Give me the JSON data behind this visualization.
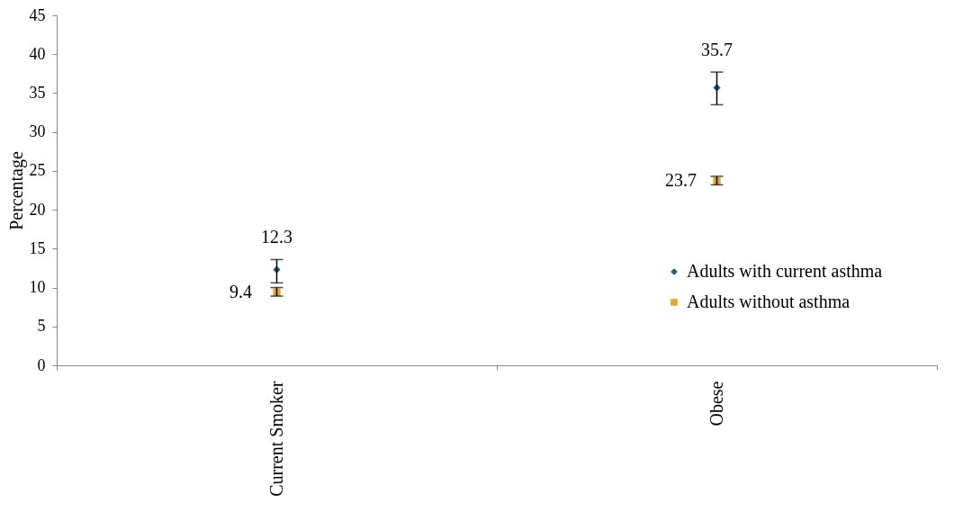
{
  "chart_data": {
    "type": "scatter",
    "ylabel": "Percentage",
    "categories": [
      "Current Smoker",
      "Obese"
    ],
    "series": [
      {
        "name": "Adults with current asthma",
        "color": "#1f5c87",
        "marker": "diamond",
        "values": [
          12.3,
          35.7
        ],
        "errors": [
          [
            10.6,
            13.6
          ],
          [
            33.5,
            37.7
          ]
        ]
      },
      {
        "name": "Adults without asthma",
        "color": "#e8a72c",
        "marker": "square",
        "values": [
          9.4,
          23.7
        ],
        "errors": [
          [
            8.9,
            10.0
          ],
          [
            23.2,
            24.3
          ]
        ]
      }
    ],
    "ylim": [
      0,
      45
    ],
    "yticks": [
      0,
      5,
      10,
      15,
      20,
      25,
      30,
      35,
      40,
      45
    ],
    "data_labels": true,
    "grid": false,
    "legend": "bottom right"
  }
}
